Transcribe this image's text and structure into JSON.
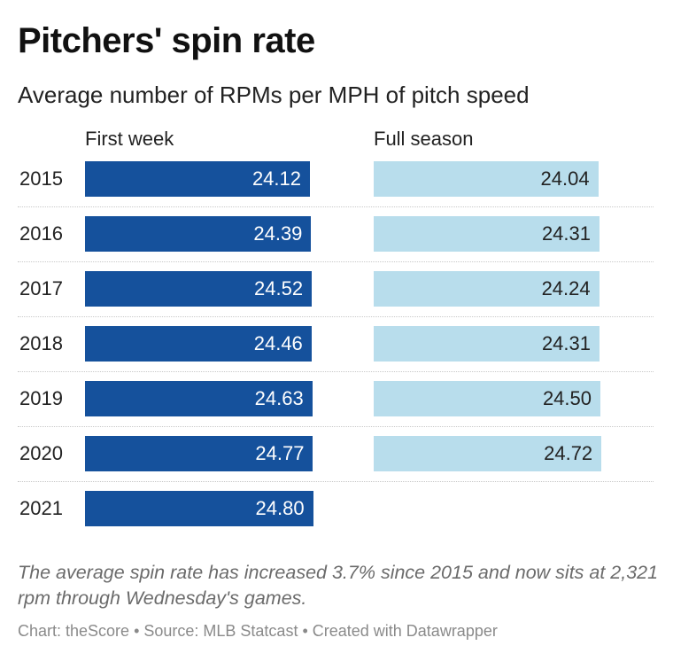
{
  "title": "Pitchers' spin rate",
  "subtitle": "Average number of RPMs per MPH of pitch speed",
  "note": "The average spin rate has increased 3.7% since 2015 and now sits at 2,321 rpm through Wednesday's games.",
  "footer": "Chart: theScore • Source: MLB Statcast • Created with Datawrapper",
  "colors": {
    "first_week": "#15519c",
    "full_season": "#b8ddec"
  },
  "chart_data": {
    "type": "bar",
    "orientation": "horizontal",
    "title": "Pitchers' spin rate",
    "subtitle": "Average number of RPMs per MPH of pitch speed",
    "categories": [
      "2015",
      "2016",
      "2017",
      "2018",
      "2019",
      "2020",
      "2021"
    ],
    "series": [
      {
        "name": "First week",
        "values": [
          24.12,
          24.39,
          24.52,
          24.46,
          24.63,
          24.77,
          24.8
        ],
        "labels": [
          "24.12",
          "24.39",
          "24.52",
          "24.46",
          "24.63",
          "24.77",
          "24.80"
        ]
      },
      {
        "name": "Full season",
        "values": [
          24.04,
          24.31,
          24.24,
          24.31,
          24.5,
          24.72,
          null
        ],
        "labels": [
          "24.04",
          "24.31",
          "24.24",
          "24.31",
          "24.50",
          "24.72",
          ""
        ]
      }
    ],
    "grid": false,
    "legend": "column headers"
  }
}
